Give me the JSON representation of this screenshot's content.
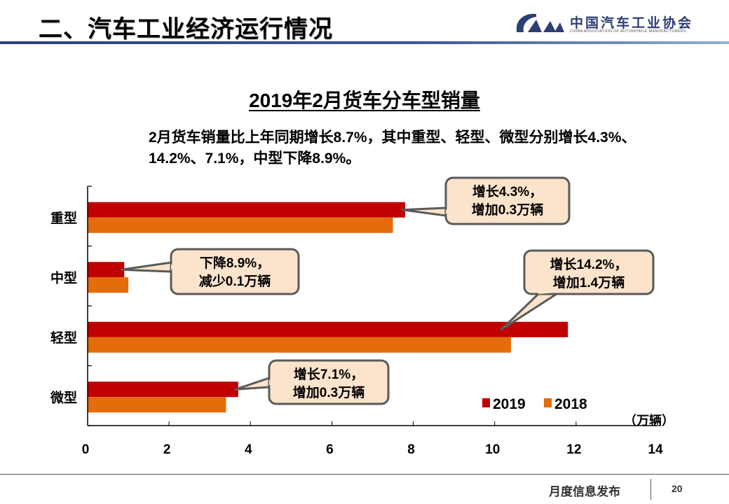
{
  "header": {
    "title": "二、汽车工业经济运行情况",
    "logo": {
      "icon": "caam-logo-icon",
      "name_cn": "中国汽车工业协会",
      "name_en": "CHINA ASSOCIATION OF AUTOMOBILE MANUFACTURERS"
    }
  },
  "summary": "2月货车销量比上年同期增长8.7%，其中重型、轻型、微型分别增长4.3%、14.2%、7.1%，中型下降8.9%。",
  "footer": {
    "text": "月度信息发布",
    "page": "20"
  },
  "colors": {
    "series_2019": "#c00000",
    "series_2018": "#e46c0a",
    "callout_fill": "#fbe3cc",
    "callout_stroke": "#5a5a5a",
    "header_line": "#2a3f7a"
  },
  "chart_data": {
    "type": "bar",
    "orientation": "horizontal",
    "title": "2019年2月货车分车型销量",
    "categories": [
      "重型",
      "中型",
      "轻型",
      "微型"
    ],
    "series": [
      {
        "name": "2019",
        "values": [
          7.8,
          0.9,
          11.8,
          3.7
        ]
      },
      {
        "name": "2018",
        "values": [
          7.5,
          1.0,
          10.4,
          3.4
        ]
      }
    ],
    "xlabel": "",
    "unit": "（万辆）",
    "xlim": [
      0,
      14
    ],
    "xticks": [
      "0",
      "2",
      "4",
      "6",
      "8",
      "10",
      "12",
      "14"
    ],
    "grid": false,
    "legend": {
      "placement": "bottom-right",
      "entries": [
        "2019",
        "2018"
      ]
    },
    "annotations": [
      {
        "category": "重型",
        "lines": [
          "增长4.3%，",
          "增加0.3万辆"
        ]
      },
      {
        "category": "中型",
        "lines": [
          "下降8.9%，",
          "减少0.1万辆"
        ]
      },
      {
        "category": "轻型",
        "lines": [
          "增长14.2%，",
          "增加1.4万辆"
        ]
      },
      {
        "category": "微型",
        "lines": [
          "增长7.1%，",
          "增加0.3万辆"
        ]
      }
    ]
  }
}
